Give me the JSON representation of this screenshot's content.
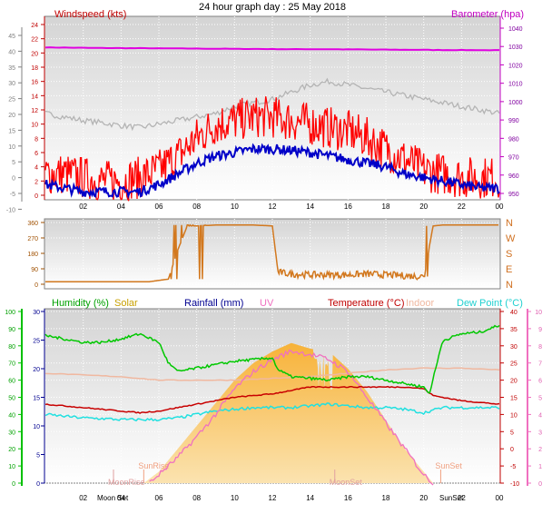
{
  "title": "24 hour graph day : 25 May 2018",
  "colors": {
    "wind_speed": "#ff0000",
    "wind_avg": "#0000c8",
    "gust_grey": "#b4b4b4",
    "barometer": "#e000e0",
    "wind_dir": "#d2781e",
    "humidity": "#00c800",
    "solar": "#f0b030",
    "rainfall": "#000090",
    "uv": "#f070c0",
    "temperature": "#c80000",
    "indoor": "#f0b8a0",
    "dew_point": "#20e0e0",
    "sun_marker": "#f0a080",
    "moon_marker": "#e0a0a0"
  },
  "chart_data": [
    {
      "type": "line",
      "panel": "wind_pressure",
      "x_ticks": [
        "02",
        "04",
        "06",
        "08",
        "10",
        "12",
        "14",
        "16",
        "18",
        "20",
        "22",
        "00"
      ],
      "left_axis_outer_ticks": [
        "45",
        "40",
        "35",
        "30",
        "25",
        "20",
        "15",
        "10",
        "5",
        "0",
        "-5",
        "-10"
      ],
      "left_label": "Windspeed (kts)",
      "left_ticks": [
        "24",
        "22",
        "20",
        "18",
        "16",
        "14",
        "12",
        "10",
        "8",
        "6",
        "4",
        "2",
        "0"
      ],
      "right_label": "Barometer (hpa)",
      "right_ticks": [
        "1040",
        "1030",
        "1020",
        "1010",
        "1000",
        "990",
        "980",
        "970",
        "960",
        "950"
      ],
      "ylim_left": [
        0,
        25
      ],
      "series": [
        {
          "key": "barometer",
          "x": [
            0,
            3,
            6,
            9,
            12,
            15,
            18,
            21,
            24
          ],
          "values": [
            1029.5,
            1029.2,
            1029.0,
            1028.8,
            1028.6,
            1028.5,
            1028.3,
            1028.1,
            1028.0
          ]
        },
        {
          "key": "gust_grey",
          "x": [
            0,
            1,
            2,
            3,
            4,
            5,
            6,
            7,
            8,
            9,
            10,
            11,
            12,
            13,
            14,
            15,
            16,
            17,
            18,
            19,
            20,
            21,
            22,
            23,
            24
          ],
          "values": [
            11.5,
            11,
            10.5,
            10.2,
            9.8,
            9.5,
            10,
            10.5,
            11,
            11.5,
            12.5,
            13,
            13.5,
            14.5,
            15.5,
            16,
            15.5,
            15,
            14.5,
            14,
            13.5,
            13,
            12.5,
            12,
            11.5
          ]
        },
        {
          "key": "wind_speed",
          "x": [
            0,
            1,
            2,
            3,
            4,
            5,
            6,
            7,
            8,
            9,
            10,
            11,
            12,
            13,
            14,
            15,
            16,
            17,
            18,
            19,
            20,
            21,
            22,
            23,
            24
          ],
          "values": [
            3,
            3,
            2.5,
            2,
            2,
            2.5,
            3.5,
            5.5,
            8,
            10,
            10.5,
            11,
            11,
            10.5,
            10,
            9.5,
            9,
            8,
            6.5,
            5,
            3.5,
            3,
            2.5,
            2.5,
            2.5
          ]
        },
        {
          "key": "wind_avg",
          "x": [
            0,
            1,
            2,
            3,
            4,
            5,
            6,
            7,
            8,
            9,
            10,
            11,
            12,
            13,
            14,
            15,
            16,
            17,
            18,
            19,
            20,
            21,
            22,
            23,
            24
          ],
          "values": [
            1.5,
            1,
            0.5,
            0.5,
            0.5,
            0.5,
            1.5,
            3,
            4.5,
            5.5,
            6,
            6.5,
            6.5,
            6.3,
            6,
            5.5,
            5,
            4.5,
            4,
            3,
            2.5,
            2,
            1.5,
            1,
            1
          ]
        }
      ]
    },
    {
      "type": "scatter",
      "panel": "wind_direction",
      "left_ticks": [
        "360",
        "270",
        "180",
        "90",
        "0"
      ],
      "right_ticks": [
        "N",
        "W",
        "S",
        "E",
        "N"
      ],
      "ylim": [
        0,
        360
      ],
      "series": [
        {
          "key": "wind_dir",
          "x": [
            0,
            2,
            4,
            5.5,
            6.5,
            7,
            7.5,
            8,
            9,
            10,
            11,
            12,
            12.3,
            13,
            14,
            15,
            16,
            17,
            18,
            19,
            20,
            20.5,
            21,
            22,
            23,
            24
          ],
          "values": [
            15,
            15,
            15,
            15,
            30,
            200,
            340,
            340,
            345,
            345,
            345,
            340,
            70,
            60,
            55,
            55,
            55,
            60,
            55,
            50,
            45,
            340,
            345,
            345,
            345,
            345
          ]
        }
      ]
    },
    {
      "type": "line",
      "panel": "weather",
      "labels": {
        "humidity": "Humidity (%)",
        "solar": "Solar",
        "rainfall": "Rainfall (mm)",
        "uv": "UV",
        "temperature": "Temperature (°C)",
        "indoor": "Indoor",
        "dew_point": "Dew Point (°C)"
      },
      "humidity_ticks": [
        "100",
        "90",
        "80",
        "70",
        "60",
        "50",
        "40",
        "30",
        "20",
        "10",
        "0"
      ],
      "rain_ticks": [
        "30",
        "25",
        "20",
        "15",
        "10",
        "5",
        "0"
      ],
      "temp_ticks": [
        "40",
        "35",
        "30",
        "25",
        "20",
        "15",
        "10",
        "5",
        "0",
        "-5",
        "-10"
      ],
      "uv_ticks": [
        "10",
        "9",
        "8",
        "7",
        "6",
        "5",
        "4",
        "3",
        "2",
        "1",
        "0"
      ],
      "x_ticks": [
        "02",
        "04",
        "06",
        "08",
        "10",
        "12",
        "14",
        "16",
        "18",
        "20",
        "22",
        "00"
      ],
      "markers": [
        {
          "label": "SunRise",
          "x": 5.2
        },
        {
          "label": "MoonRise",
          "x": 3.6
        },
        {
          "label": "MoonSet",
          "x": 15.3
        },
        {
          "label": "SunSet",
          "x": 20.9
        }
      ],
      "moon_set_tick_label": "Moon Set",
      "sun_set_tick_label": "SunSet",
      "series": [
        {
          "key": "humidity",
          "x": [
            0,
            1,
            2,
            3,
            4,
            5,
            6,
            6.5,
            7,
            8,
            9,
            10,
            11,
            12,
            12.3,
            13,
            14,
            15,
            16,
            17,
            18,
            19,
            20,
            20.3,
            21,
            22,
            23,
            24
          ],
          "values": [
            86,
            84,
            82,
            82,
            84,
            87,
            82,
            70,
            65,
            67,
            69,
            71,
            72,
            73,
            66,
            62,
            61,
            60,
            62,
            62,
            60,
            58,
            56,
            52,
            83,
            87,
            88,
            92
          ]
        },
        {
          "key": "temperature",
          "x": [
            0,
            2,
            4,
            5,
            6,
            7,
            8,
            9,
            10,
            11,
            12,
            13,
            14,
            15,
            16,
            17,
            18,
            19,
            20,
            20.5,
            21,
            22,
            23,
            24
          ],
          "values": [
            13,
            12,
            11,
            10.5,
            11,
            12,
            13,
            14,
            15,
            15.5,
            16,
            17,
            18,
            18,
            18,
            18,
            18,
            18,
            17.5,
            15.5,
            15,
            14,
            13.5,
            13
          ]
        },
        {
          "key": "dew_point",
          "x": [
            0,
            1,
            2,
            3,
            4,
            5,
            6,
            7,
            8,
            9,
            10,
            11,
            12,
            13,
            14,
            15,
            16,
            17,
            18,
            19,
            20,
            21,
            22,
            23,
            24
          ],
          "values": [
            10,
            9.5,
            9,
            8.8,
            8.5,
            8.5,
            8.5,
            9,
            10,
            11,
            11.5,
            12,
            12,
            12,
            12.5,
            13,
            12.5,
            12,
            12,
            11.5,
            10.5,
            12,
            12,
            12,
            12
          ]
        },
        {
          "key": "indoor",
          "x": [
            0,
            2,
            4,
            6,
            8,
            10,
            12,
            14,
            16,
            18,
            20,
            22,
            24
          ],
          "values": [
            22,
            21.5,
            21,
            20,
            20,
            20,
            20.5,
            21,
            22,
            23,
            23.5,
            23.5,
            23
          ]
        },
        {
          "key": "uv",
          "x": [
            5.5,
            6,
            7,
            8,
            9,
            10,
            11,
            12,
            13,
            14,
            15,
            16,
            17,
            18,
            19,
            20,
            20.5
          ],
          "values": [
            0,
            0.5,
            1.5,
            2.7,
            4,
            5.5,
            6.5,
            7.2,
            7.7,
            7.5,
            7.2,
            6.5,
            5,
            3.5,
            2,
            0.5,
            0
          ]
        },
        {
          "key": "solar",
          "x": [
            5.2,
            6,
            7,
            8,
            9,
            10,
            11,
            12,
            13,
            14,
            15,
            16,
            17,
            18,
            19,
            20,
            20.5
          ],
          "values": [
            0,
            2,
            6,
            10,
            14,
            18,
            21,
            23,
            24.5,
            23.5,
            23,
            20,
            16,
            11,
            6,
            2,
            0
          ]
        }
      ]
    }
  ]
}
